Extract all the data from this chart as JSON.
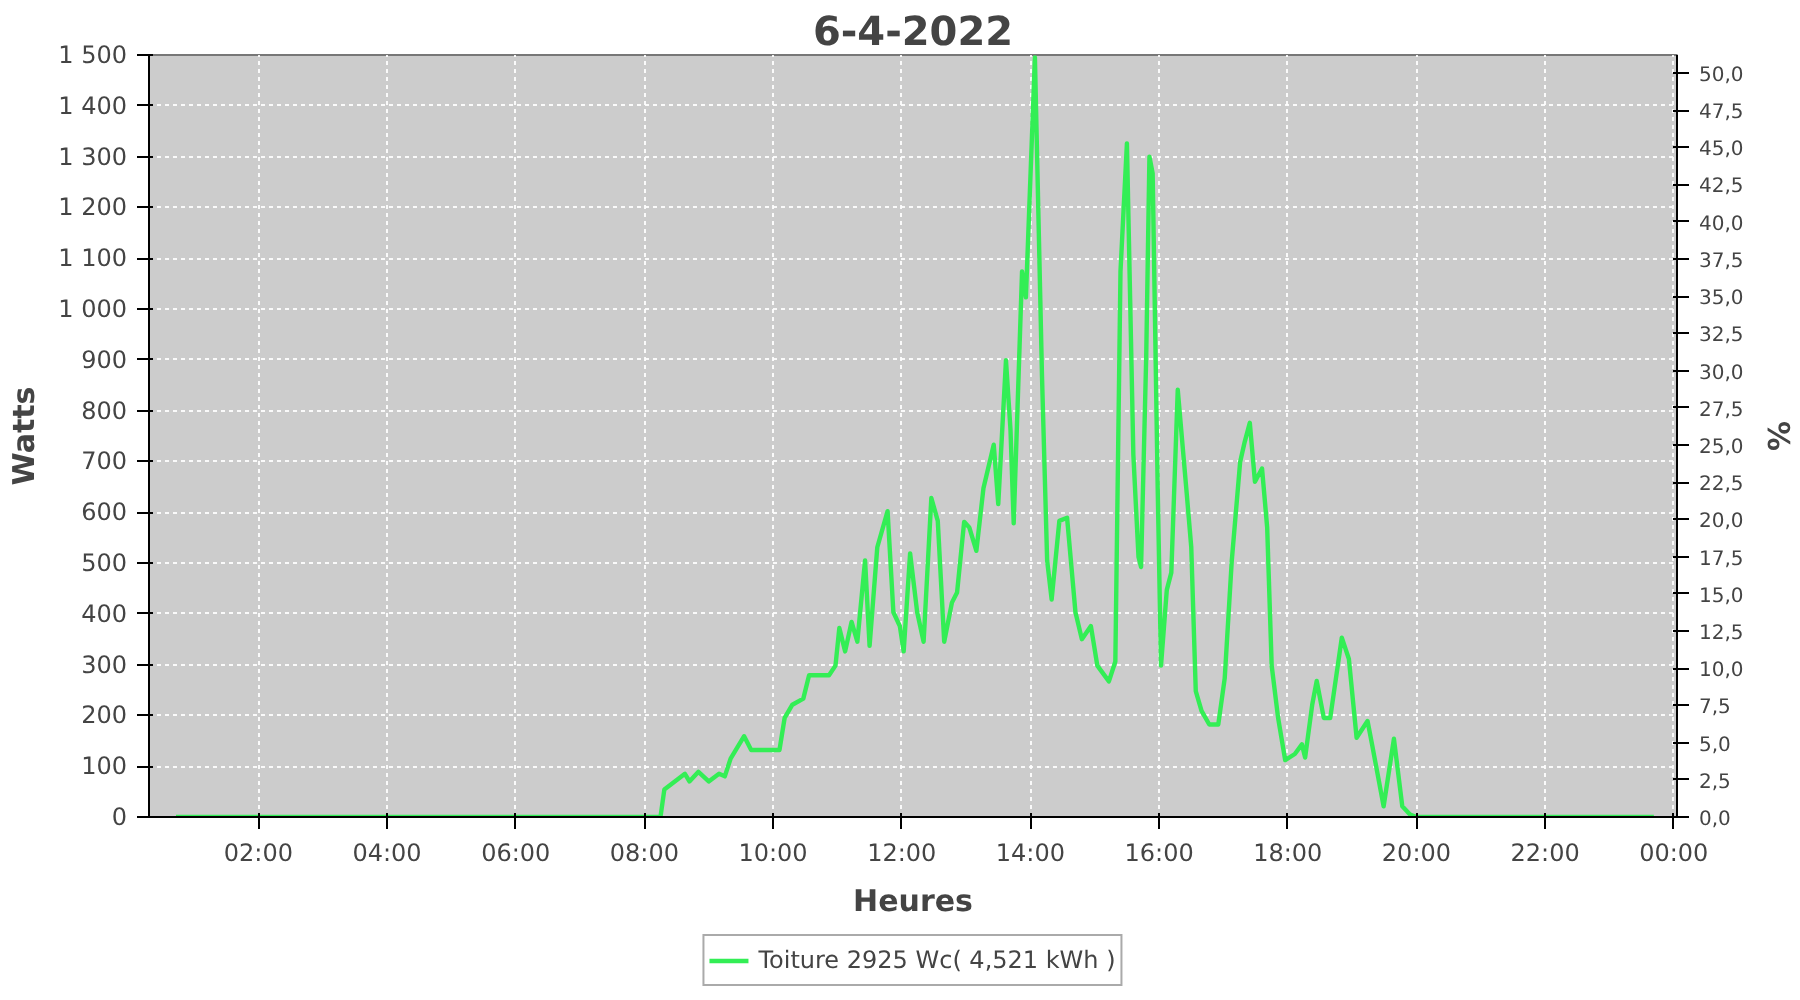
{
  "chart_data": {
    "type": "line",
    "title": "6-4-2022",
    "xlabel": "Heures",
    "ylabel": "Watts",
    "y2label": "%",
    "xlim": [
      0.3,
      24.05
    ],
    "ylim": [
      0,
      1500
    ],
    "y2lim": [
      0,
      51.2
    ],
    "xticks": [
      {
        "value": 2,
        "label": "02:00"
      },
      {
        "value": 4,
        "label": "04:00"
      },
      {
        "value": 6,
        "label": "06:00"
      },
      {
        "value": 8,
        "label": "08:00"
      },
      {
        "value": 10,
        "label": "10:00"
      },
      {
        "value": 12,
        "label": "12:00"
      },
      {
        "value": 14,
        "label": "14:00"
      },
      {
        "value": 16,
        "label": "16:00"
      },
      {
        "value": 18,
        "label": "18:00"
      },
      {
        "value": 20,
        "label": "20:00"
      },
      {
        "value": 22,
        "label": "22:00"
      },
      {
        "value": 24,
        "label": "00:00"
      }
    ],
    "yticks": [
      0,
      100,
      200,
      300,
      400,
      500,
      600,
      700,
      800,
      900,
      {
        "value": 1000,
        "label": "1 000"
      },
      {
        "value": 1100,
        "label": "1 100"
      },
      {
        "value": 1200,
        "label": "1 200"
      },
      {
        "value": 1300,
        "label": "1 300"
      },
      {
        "value": 1400,
        "label": "1 400"
      },
      {
        "value": 1500,
        "label": "1 500"
      }
    ],
    "y2ticks": [
      {
        "value": 0,
        "label": "0,0"
      },
      {
        "value": 2.5,
        "label": "2,5"
      },
      {
        "value": 5,
        "label": "5,0"
      },
      {
        "value": 7.5,
        "label": "7,5"
      },
      {
        "value": 10,
        "label": "10,0"
      },
      {
        "value": 12.5,
        "label": "12,5"
      },
      {
        "value": 15,
        "label": "15,0"
      },
      {
        "value": 17.5,
        "label": "17,5"
      },
      {
        "value": 20,
        "label": "20,0"
      },
      {
        "value": 22.5,
        "label": "22,5"
      },
      {
        "value": 25,
        "label": "25,0"
      },
      {
        "value": 27.5,
        "label": "27,5"
      },
      {
        "value": 30,
        "label": "30,0"
      },
      {
        "value": 32.5,
        "label": "32,5"
      },
      {
        "value": 35,
        "label": "35,0"
      },
      {
        "value": 37.5,
        "label": "37,5"
      },
      {
        "value": 40,
        "label": "40,0"
      },
      {
        "value": 42.5,
        "label": "42,5"
      },
      {
        "value": 45,
        "label": "45,0"
      },
      {
        "value": 47.5,
        "label": "47,5"
      },
      {
        "value": 50,
        "label": "50,0"
      }
    ],
    "grid": true,
    "legend": "bottom",
    "series": [
      {
        "name": "Toiture 2925 Wc( 4,521 kWh )",
        "color": "#33ee55",
        "x": [
          0.72,
          8.25,
          8.31,
          8.63,
          8.7,
          8.84,
          9.0,
          9.16,
          9.25,
          9.34,
          9.55,
          9.66,
          10.1,
          10.18,
          10.3,
          10.47,
          10.56,
          10.87,
          10.97,
          11.03,
          11.12,
          11.22,
          11.31,
          11.43,
          11.5,
          11.62,
          11.78,
          11.87,
          11.97,
          12.03,
          12.13,
          12.24,
          12.34,
          12.46,
          12.56,
          12.66,
          12.78,
          12.86,
          12.97,
          13.05,
          13.16,
          13.27,
          13.43,
          13.5,
          13.62,
          13.69,
          13.74,
          13.87,
          13.93,
          14.07,
          14.18,
          14.26,
          14.33,
          14.45,
          14.57,
          14.7,
          14.8,
          14.94,
          15.04,
          15.22,
          15.32,
          15.4,
          15.5,
          15.6,
          15.68,
          15.72,
          15.8,
          15.85,
          15.9,
          15.98,
          16.03,
          16.12,
          16.19,
          16.29,
          16.43,
          16.5,
          16.57,
          16.66,
          16.78,
          16.92,
          17.02,
          17.13,
          17.26,
          17.33,
          17.41,
          17.49,
          17.6,
          17.68,
          17.75,
          17.85,
          17.96,
          18.11,
          18.22,
          18.27,
          18.38,
          18.45,
          18.56,
          18.66,
          18.84,
          18.95,
          19.07,
          19.24,
          19.31,
          19.49,
          19.65,
          19.78,
          19.9,
          20.0,
          23.69
        ],
        "values": [
          0,
          0,
          54,
          85,
          70,
          89,
          70,
          85,
          80,
          115,
          159,
          132,
          132,
          195,
          221,
          233,
          279,
          279,
          298,
          372,
          326,
          384,
          345,
          505,
          337,
          531,
          602,
          403,
          376,
          326,
          519,
          403,
          345,
          628,
          583,
          345,
          422,
          442,
          581,
          570,
          524,
          647,
          733,
          616,
          899,
          763,
          578,
          1074,
          1023,
          1495,
          868,
          505,
          428,
          583,
          589,
          403,
          350,
          376,
          298,
          267,
          306,
          1074,
          1326,
          713,
          512,
          492,
          907,
          1300,
          1267,
          636,
          298,
          447,
          481,
          841,
          636,
          531,
          248,
          209,
          182,
          182,
          273,
          505,
          699,
          738,
          776,
          660,
          686,
          570,
          298,
          195,
          112,
          124,
          143,
          117,
          221,
          268,
          195,
          195,
          353,
          311,
          156,
          189,
          143,
          21,
          154,
          21,
          5,
          0,
          0
        ]
      }
    ]
  }
}
